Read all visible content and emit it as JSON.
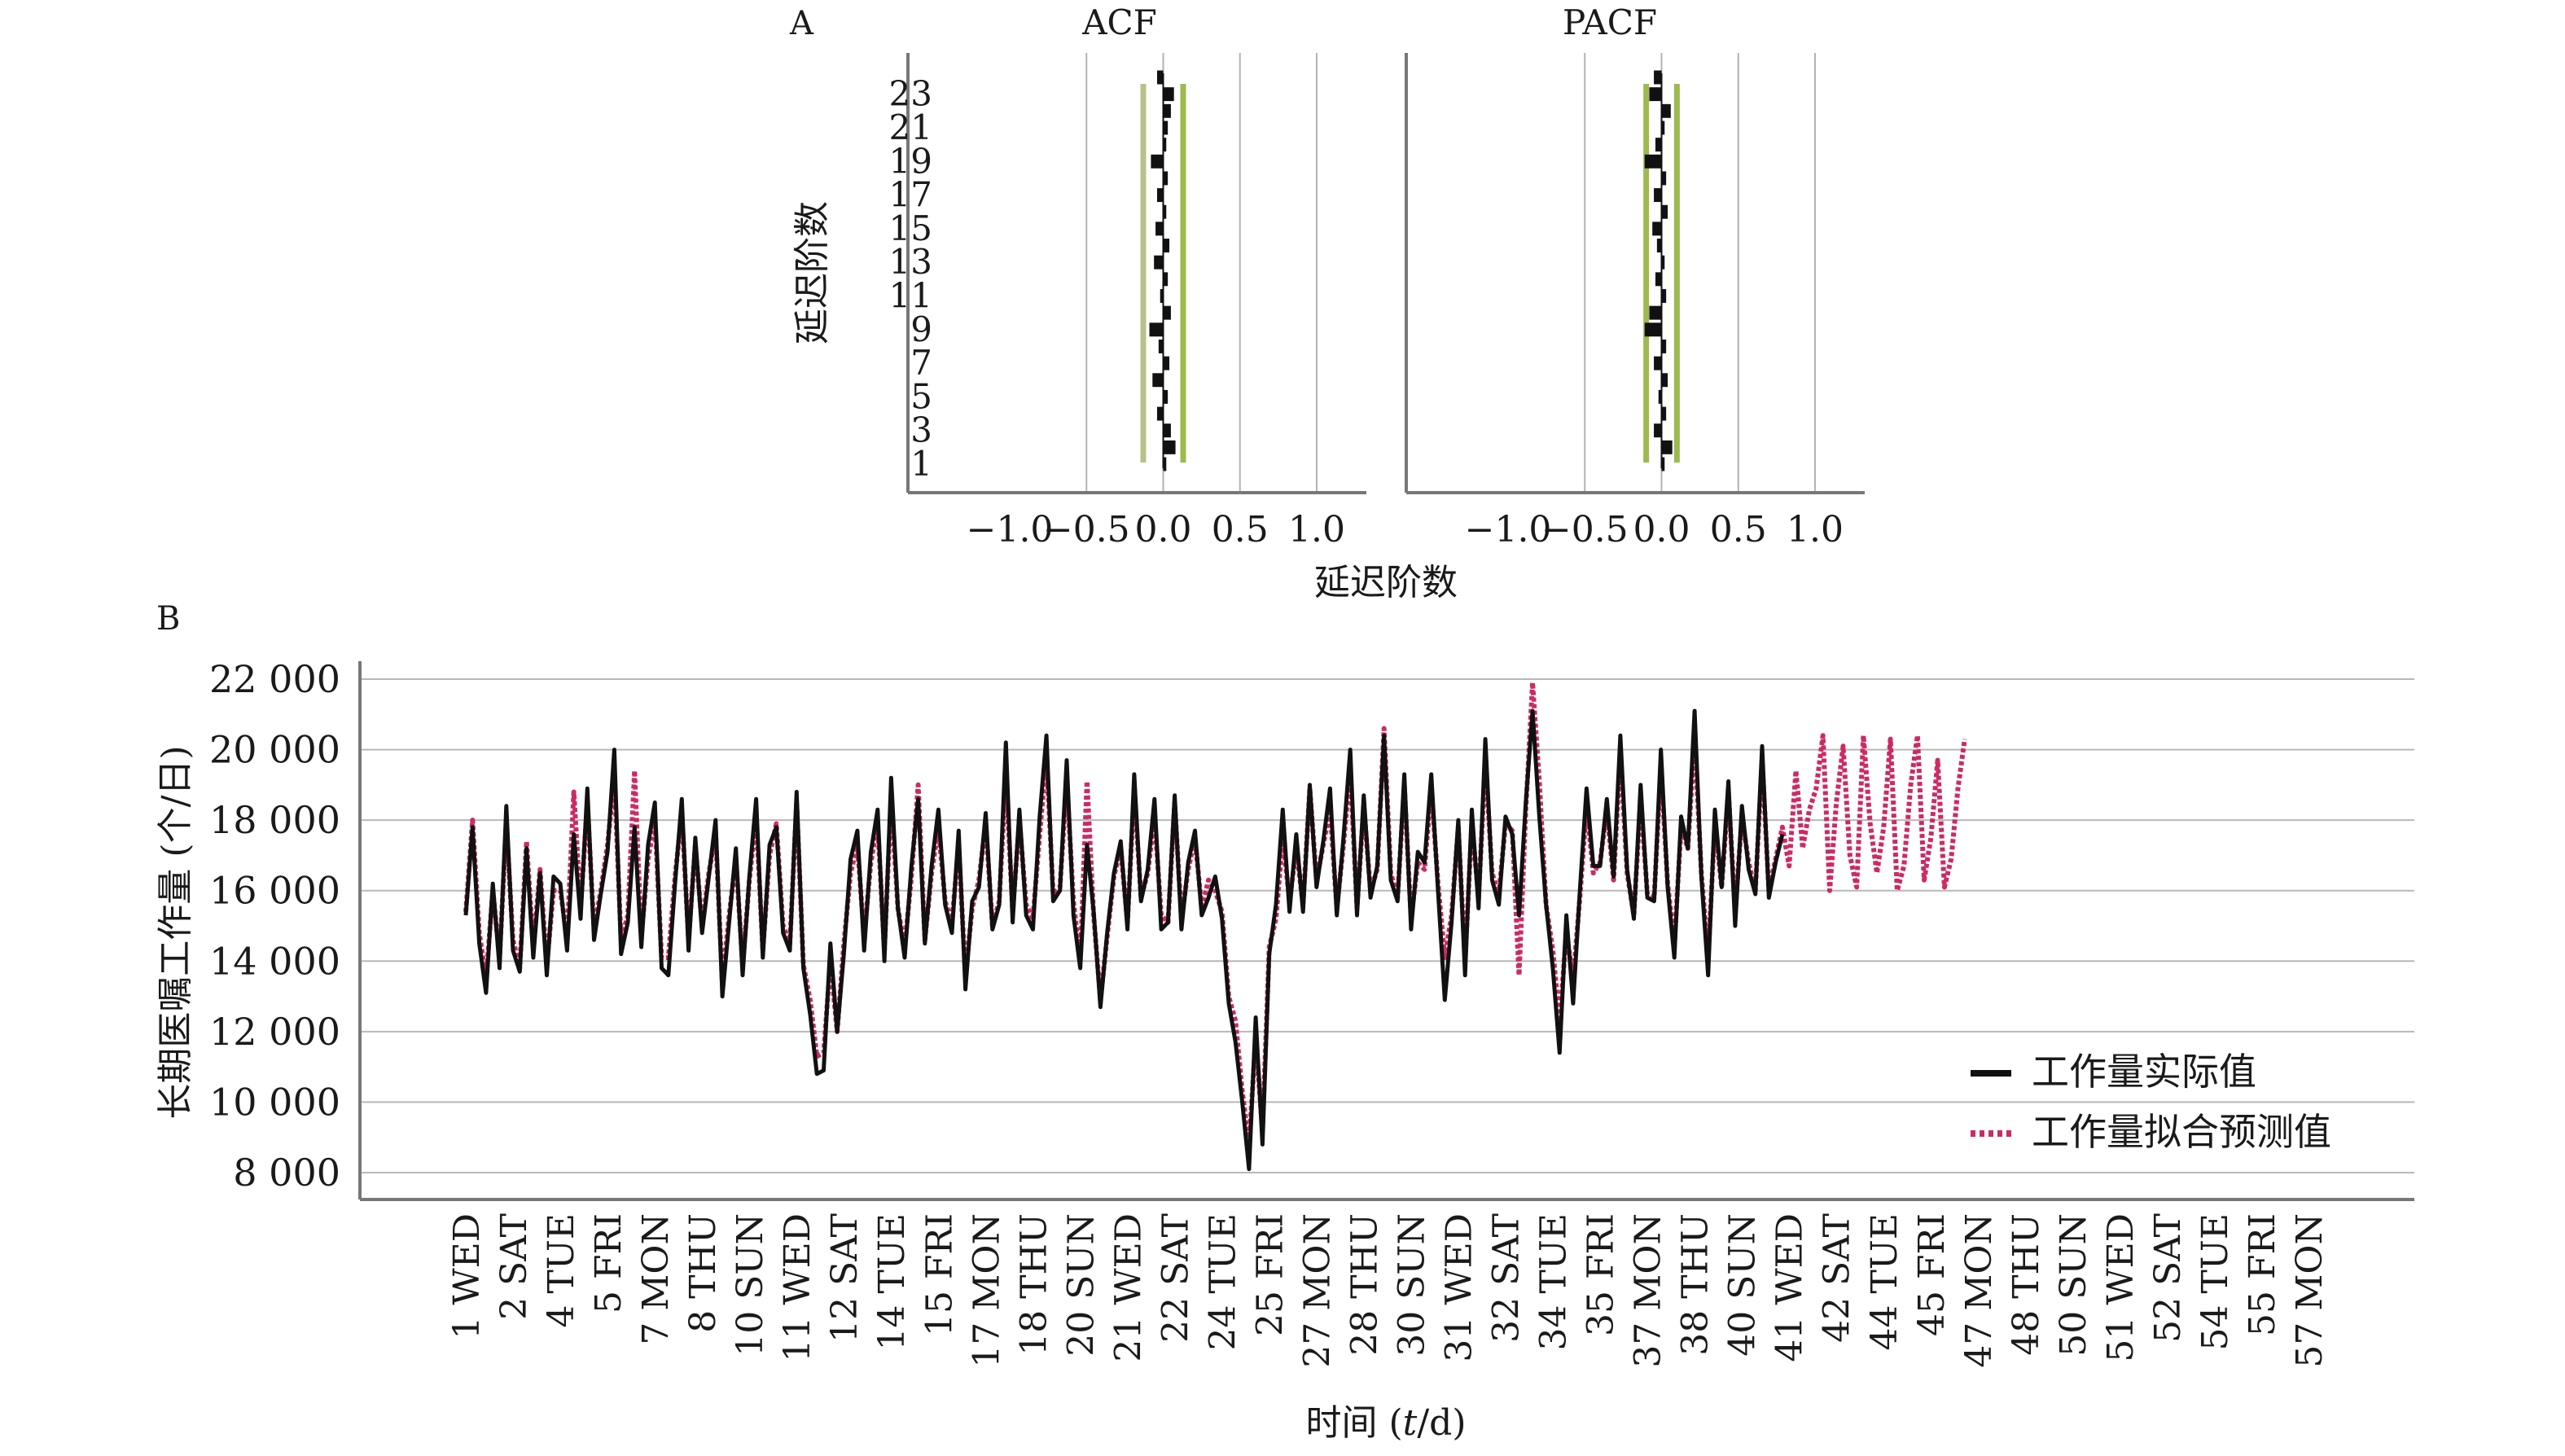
{
  "chart_data": [
    {
      "panel": "A",
      "type": "bar",
      "title": "ACF",
      "ylabel": "延迟阶数",
      "xlabel": "延迟阶数",
      "xlim": [
        -1.0,
        1.0
      ],
      "x_ticks": [
        "−1.0",
        "−0.5",
        "0.0",
        "0.5",
        "1.0"
      ],
      "y_ticks": [
        "1",
        "3",
        "5",
        "7",
        "9",
        "11",
        "13",
        "15",
        "17",
        "19",
        "21",
        "23"
      ],
      "lags": [
        1,
        2,
        3,
        4,
        5,
        6,
        7,
        8,
        9,
        10,
        11,
        12,
        13,
        14,
        15,
        16,
        17,
        18,
        19,
        20,
        21,
        22,
        23,
        24
      ],
      "values": [
        0.02,
        0.08,
        0.05,
        -0.04,
        0.03,
        -0.07,
        0.04,
        -0.03,
        -0.09,
        0.05,
        -0.02,
        0.03,
        -0.06,
        0.04,
        -0.05,
        0.02,
        -0.04,
        0.03,
        -0.08,
        0.02,
        0.03,
        0.05,
        0.07,
        -0.04
      ],
      "conf_upper": 0.13,
      "conf_lower": -0.13,
      "grid": true,
      "colors": {
        "bars": "#111111",
        "conf_upper": "#9dba4d",
        "conf_lower": "#b7c28a"
      }
    },
    {
      "panel": "A",
      "type": "bar",
      "title": "PACF",
      "xlim": [
        -1.0,
        1.0
      ],
      "x_ticks": [
        "−1.0",
        "−0.5",
        "0.0",
        "0.5",
        "1.0"
      ],
      "lags": [
        1,
        2,
        3,
        4,
        5,
        6,
        7,
        8,
        9,
        10,
        11,
        12,
        13,
        14,
        15,
        16,
        17,
        18,
        19,
        20,
        21,
        22,
        23,
        24
      ],
      "values": [
        0.02,
        0.07,
        -0.05,
        0.03,
        -0.02,
        0.04,
        -0.05,
        0.03,
        -0.11,
        -0.08,
        0.03,
        -0.04,
        0.02,
        -0.03,
        -0.06,
        0.04,
        -0.05,
        0.03,
        -0.11,
        -0.04,
        0.02,
        0.06,
        -0.08,
        -0.05
      ],
      "conf_upper": 0.1,
      "conf_lower": -0.1,
      "grid": true,
      "colors": {
        "bars": "#111111",
        "conf_upper": "#9dba4d",
        "conf_lower": "#9dba4d"
      }
    },
    {
      "panel": "B",
      "type": "line",
      "xlabel_prefix": "时间 (",
      "xlabel_var": "t",
      "xlabel_suffix": "/d)",
      "ylabel": "长期医嘱工作量 (个/日)",
      "ylim": [
        8000,
        22000
      ],
      "y_ticks": [
        "22 000",
        "20 000",
        "18 000",
        "16 000",
        "14 000",
        "12 000",
        "10 000",
        "8 000"
      ],
      "x_range": [
        1,
        57.5
      ],
      "x_ticks": [
        {
          "x": 1,
          "label": "1 WED"
        },
        {
          "x": 2,
          "label": "2 SAT"
        },
        {
          "x": 3,
          "label": "4 TUE"
        },
        {
          "x": 4,
          "label": "5 FRI"
        },
        {
          "x": 5,
          "label": "7 MON"
        },
        {
          "x": 6,
          "label": "8 THU"
        },
        {
          "x": 7,
          "label": "10 SUN"
        },
        {
          "x": 8,
          "label": "11 WED"
        },
        {
          "x": 9,
          "label": "12 SAT"
        },
        {
          "x": 10,
          "label": "14 TUE"
        },
        {
          "x": 11,
          "label": "15 FRI"
        },
        {
          "x": 12,
          "label": "17 MON"
        },
        {
          "x": 13,
          "label": "18 THU"
        },
        {
          "x": 14,
          "label": "20 SUN"
        },
        {
          "x": 15,
          "label": "21 WED"
        },
        {
          "x": 16,
          "label": "22 SAT"
        },
        {
          "x": 17,
          "label": "24 TUE"
        },
        {
          "x": 18,
          "label": "25 FRI"
        },
        {
          "x": 19,
          "label": "27 MON"
        },
        {
          "x": 20,
          "label": "28 THU"
        },
        {
          "x": 21,
          "label": "30 SUN"
        },
        {
          "x": 22,
          "label": "31 WED"
        },
        {
          "x": 23,
          "label": "32 SAT"
        },
        {
          "x": 24,
          "label": "34 TUE"
        },
        {
          "x": 25,
          "label": "35 FRI"
        },
        {
          "x": 26,
          "label": "37 MON"
        },
        {
          "x": 27,
          "label": "38 THU"
        },
        {
          "x": 28,
          "label": "40 SUN"
        },
        {
          "x": 29,
          "label": "41 WED"
        },
        {
          "x": 30,
          "label": "42 SAT"
        },
        {
          "x": 31,
          "label": "44 TUE"
        },
        {
          "x": 32,
          "label": "45 FRI"
        },
        {
          "x": 33,
          "label": "47 MON"
        },
        {
          "x": 34,
          "label": "48 THU"
        },
        {
          "x": 35,
          "label": "50 SUN"
        },
        {
          "x": 36,
          "label": "51 WED"
        },
        {
          "x": 37,
          "label": "52 SAT"
        },
        {
          "x": 38,
          "label": "54 TUE"
        },
        {
          "x": 39,
          "label": "55 FRI"
        },
        {
          "x": 40,
          "label": "57 MON"
        }
      ],
      "series": [
        {
          "name": "工作量实际值",
          "color": "#111111",
          "style": "solid",
          "start": 1,
          "step": 0.1429,
          "values": [
            15300,
            17800,
            14500,
            13100,
            16200,
            13800,
            18400,
            14300,
            13700,
            17200,
            14100,
            16500,
            13600,
            16400,
            16200,
            14300,
            17600,
            15200,
            18900,
            14600,
            15900,
            17100,
            20000,
            14200,
            15100,
            17800,
            14400,
            17300,
            18500,
            13800,
            13600,
            16200,
            18600,
            14300,
            17500,
            14800,
            16400,
            18000,
            13000,
            15100,
            17200,
            13600,
            16400,
            18600,
            14100,
            17300,
            17800,
            14800,
            14300,
            18800,
            13800,
            12500,
            10800,
            10900,
            14500,
            12000,
            14200,
            16900,
            17700,
            14300,
            17100,
            18300,
            14000,
            19200,
            15500,
            14100,
            16700,
            18600,
            14500,
            16700,
            18300,
            15600,
            14800,
            17700,
            13200,
            15700,
            16100,
            18200,
            14900,
            15600,
            20200,
            15100,
            18300,
            15300,
            14900,
            18100,
            20400,
            15700,
            16000,
            19700,
            15300,
            13800,
            17300,
            15400,
            12700,
            14800,
            16500,
            17400,
            14900,
            19300,
            15700,
            16600,
            18600,
            14900,
            15100,
            18700,
            14900,
            16800,
            17700,
            15300,
            15800,
            16400,
            15200,
            12800,
            11700,
            10000,
            8100,
            12400,
            8800,
            14200,
            15600,
            18300,
            15400,
            17600,
            15400,
            19000,
            16100,
            17400,
            18900,
            15300,
            17500,
            20000,
            15300,
            18700,
            15800,
            16700,
            20400,
            16300,
            15700,
            19300,
            14900,
            17100,
            16800,
            19300,
            16000,
            12900,
            15100,
            18000,
            13600,
            18300,
            15500,
            20300,
            16300,
            15600,
            18100,
            17600,
            15300,
            18500,
            21100,
            18100,
            15600,
            13800,
            11400,
            15300,
            12800,
            16000,
            18900,
            16700,
            16700,
            18600,
            16400,
            20400,
            16600,
            15200,
            19000,
            15800,
            15700,
            20000,
            16100,
            14100,
            18100,
            17200,
            21100,
            16400,
            13600,
            18300,
            16100,
            19100,
            15000,
            18400,
            16600,
            15900,
            20100,
            15800,
            16800,
            17600
          ]
        },
        {
          "name": "工作量拟合预测值",
          "color": "#cc2a64",
          "style": "dotted",
          "start": 1,
          "step": 0.1429,
          "values": [
            15400,
            18000,
            14800,
            13500,
            16000,
            14100,
            17900,
            14600,
            13800,
            17400,
            14400,
            16600,
            13900,
            16000,
            16000,
            14700,
            18800,
            15500,
            18500,
            14900,
            16000,
            17300,
            19200,
            14600,
            15300,
            19400,
            14700,
            16900,
            18000,
            14100,
            14100,
            16400,
            18200,
            14600,
            17300,
            15000,
            16500,
            17600,
            13400,
            15300,
            16900,
            13900,
            16300,
            18100,
            14300,
            17000,
            17900,
            15000,
            14500,
            18500,
            13900,
            12900,
            11300,
            11400,
            14000,
            12000,
            14500,
            16500,
            17300,
            14700,
            16800,
            17900,
            14300,
            18600,
            15500,
            14400,
            16400,
            19000,
            14600,
            16500,
            17800,
            15700,
            15100,
            17300,
            13600,
            15500,
            16300,
            17900,
            15000,
            15700,
            19300,
            15400,
            18000,
            15600,
            15200,
            17600,
            19800,
            15900,
            16100,
            19100,
            15700,
            14000,
            19100,
            15300,
            12900,
            14700,
            16400,
            17200,
            15100,
            18900,
            15800,
            16500,
            18100,
            15300,
            15100,
            18500,
            15200,
            16600,
            17500,
            15500,
            16300,
            16000,
            15400,
            13000,
            12300,
            10300,
            8800,
            11800,
            9200,
            14400,
            15200,
            17500,
            15700,
            17200,
            15600,
            18900,
            16300,
            17300,
            18300,
            15500,
            17300,
            19400,
            15500,
            18400,
            16000,
            16600,
            20600,
            16500,
            15800,
            19000,
            15200,
            16800,
            16600,
            18900,
            16200,
            14100,
            15300,
            17800,
            14000,
            17900,
            15800,
            19700,
            16500,
            15900,
            17900,
            17700,
            13600,
            18300,
            21900,
            19100,
            15600,
            14300,
            12300,
            14800,
            13500,
            15800,
            18400,
            16500,
            16800,
            18300,
            16300,
            19900,
            16500,
            15300,
            18600,
            15900,
            15800,
            19500,
            16200,
            14500,
            17800,
            17200,
            20300,
            16500,
            14100,
            17900,
            16100,
            18800,
            15400,
            18100,
            16800,
            16000,
            19700,
            16000,
            16900,
            17800,
            16700,
            19400,
            17200,
            18300,
            18900,
            20400,
            16000,
            18500,
            20100,
            17000,
            16100,
            20400,
            17900,
            16500,
            17800,
            20300,
            16000,
            16700,
            19000,
            20400,
            16300,
            17500,
            19700,
            16100,
            16900,
            18900,
            20300
          ]
        }
      ],
      "legend": "bottom-right",
      "grid": true
    }
  ],
  "labels": {
    "panel_a": "A",
    "panel_b": "B"
  }
}
